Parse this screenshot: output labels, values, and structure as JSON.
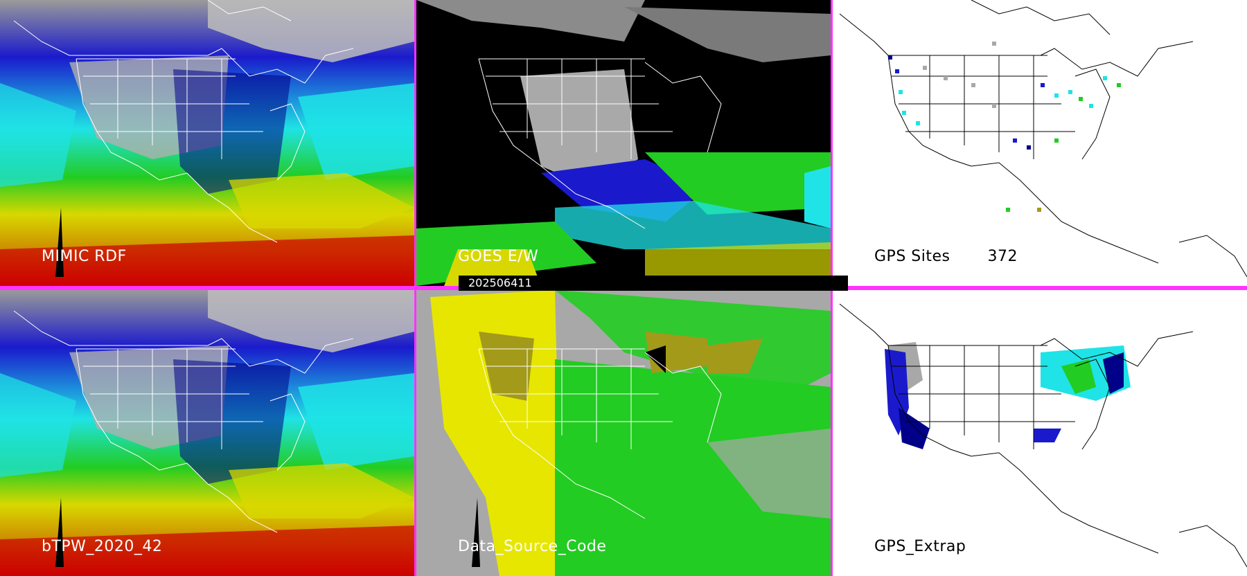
{
  "panels": [
    {
      "id": "mimic-rdf",
      "label": "MIMIC RDF",
      "style": "tpw"
    },
    {
      "id": "goes-ew",
      "label": "GOES E/W",
      "style": "goes"
    },
    {
      "id": "gps-sites",
      "label": "GPS Sites",
      "count": "372",
      "style": "gps"
    },
    {
      "id": "bitpw",
      "label": "bTPW_2020_42",
      "style": "tpw"
    },
    {
      "id": "data-source-code",
      "label": "Data_Source_Code",
      "style": "dsc"
    },
    {
      "id": "gps-extrap",
      "label": "GPS_Extrap",
      "style": "gpsx"
    }
  ],
  "timestamp": "202506411",
  "colors": {
    "separator": "#ff33ff",
    "cyan": "#1fe3e6",
    "blue": "#1a1acc",
    "navy": "#000088",
    "green": "#22cc22",
    "yellow": "#d8d800",
    "olive": "#a39a1a",
    "red": "#cc0000",
    "gray": "#a8a8a8"
  }
}
